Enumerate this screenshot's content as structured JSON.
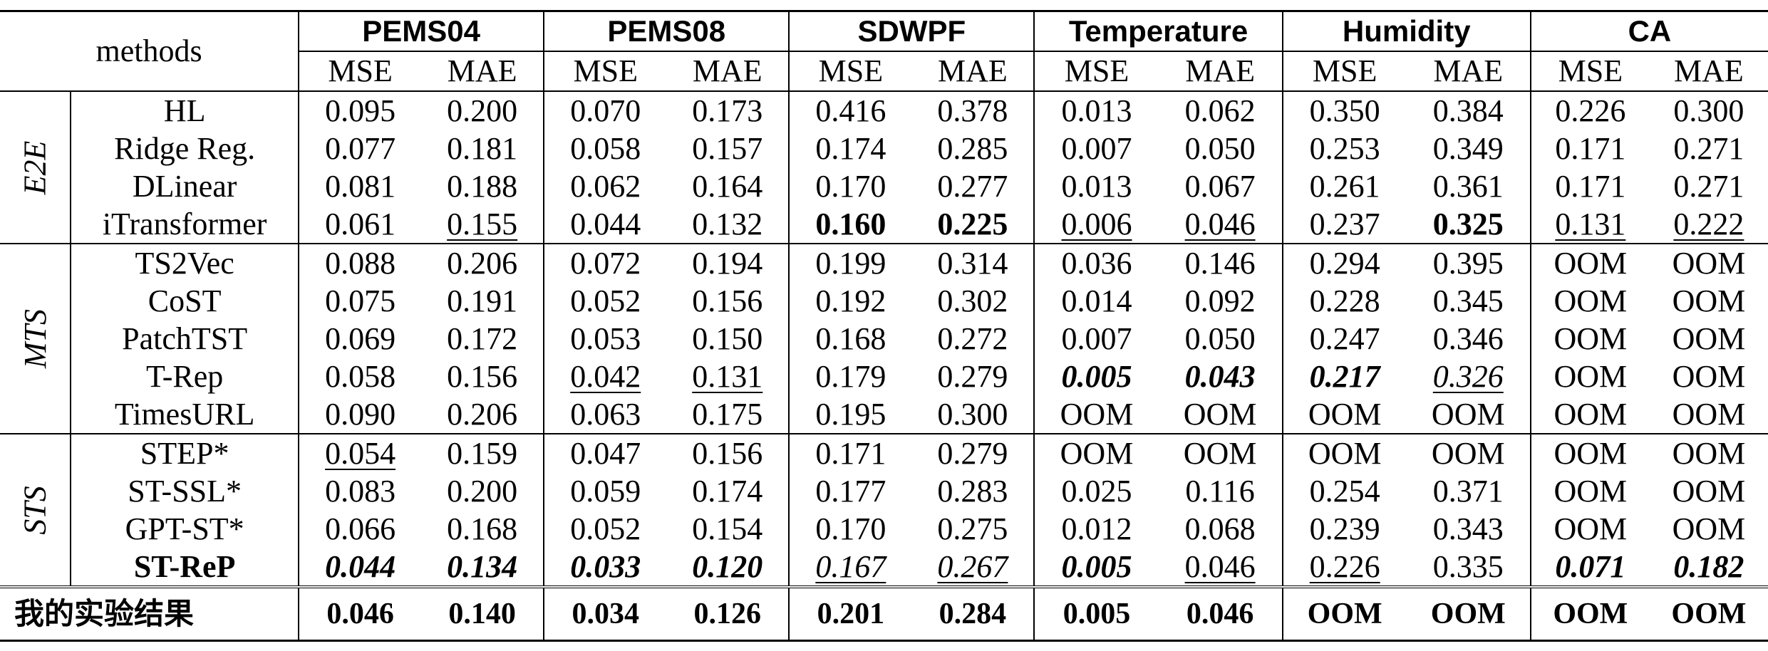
{
  "header": {
    "methods_label": "methods",
    "datasets": [
      "PEMS04",
      "PEMS08",
      "SDWPF",
      "Temperature",
      "Humidity",
      "CA"
    ],
    "metrics": [
      "MSE",
      "MAE"
    ]
  },
  "groups": [
    {
      "label": "E2E",
      "rows": [
        {
          "method": "HL",
          "values": [
            {
              "t": "0.095",
              "s": ""
            },
            {
              "t": "0.200",
              "s": ""
            },
            {
              "t": "0.070",
              "s": ""
            },
            {
              "t": "0.173",
              "s": ""
            },
            {
              "t": "0.416",
              "s": ""
            },
            {
              "t": "0.378",
              "s": ""
            },
            {
              "t": "0.013",
              "s": ""
            },
            {
              "t": "0.062",
              "s": ""
            },
            {
              "t": "0.350",
              "s": ""
            },
            {
              "t": "0.384",
              "s": ""
            },
            {
              "t": "0.226",
              "s": ""
            },
            {
              "t": "0.300",
              "s": ""
            }
          ]
        },
        {
          "method": "Ridge Reg.",
          "values": [
            {
              "t": "0.077",
              "s": ""
            },
            {
              "t": "0.181",
              "s": ""
            },
            {
              "t": "0.058",
              "s": ""
            },
            {
              "t": "0.157",
              "s": ""
            },
            {
              "t": "0.174",
              "s": ""
            },
            {
              "t": "0.285",
              "s": ""
            },
            {
              "t": "0.007",
              "s": ""
            },
            {
              "t": "0.050",
              "s": ""
            },
            {
              "t": "0.253",
              "s": ""
            },
            {
              "t": "0.349",
              "s": ""
            },
            {
              "t": "0.171",
              "s": ""
            },
            {
              "t": "0.271",
              "s": ""
            }
          ]
        },
        {
          "method": "DLinear",
          "values": [
            {
              "t": "0.081",
              "s": ""
            },
            {
              "t": "0.188",
              "s": ""
            },
            {
              "t": "0.062",
              "s": ""
            },
            {
              "t": "0.164",
              "s": ""
            },
            {
              "t": "0.170",
              "s": ""
            },
            {
              "t": "0.277",
              "s": ""
            },
            {
              "t": "0.013",
              "s": ""
            },
            {
              "t": "0.067",
              "s": ""
            },
            {
              "t": "0.261",
              "s": ""
            },
            {
              "t": "0.361",
              "s": ""
            },
            {
              "t": "0.171",
              "s": ""
            },
            {
              "t": "0.271",
              "s": ""
            }
          ]
        },
        {
          "method": "iTransformer",
          "values": [
            {
              "t": "0.061",
              "s": ""
            },
            {
              "t": "0.155",
              "s": "u"
            },
            {
              "t": "0.044",
              "s": ""
            },
            {
              "t": "0.132",
              "s": ""
            },
            {
              "t": "0.160",
              "s": "b"
            },
            {
              "t": "0.225",
              "s": "b"
            },
            {
              "t": "0.006",
              "s": "u"
            },
            {
              "t": "0.046",
              "s": "u"
            },
            {
              "t": "0.237",
              "s": ""
            },
            {
              "t": "0.325",
              "s": "b"
            },
            {
              "t": "0.131",
              "s": "u"
            },
            {
              "t": "0.222",
              "s": "u"
            }
          ]
        }
      ]
    },
    {
      "label": "MTS",
      "rows": [
        {
          "method": "TS2Vec",
          "values": [
            {
              "t": "0.088",
              "s": ""
            },
            {
              "t": "0.206",
              "s": ""
            },
            {
              "t": "0.072",
              "s": ""
            },
            {
              "t": "0.194",
              "s": ""
            },
            {
              "t": "0.199",
              "s": ""
            },
            {
              "t": "0.314",
              "s": ""
            },
            {
              "t": "0.036",
              "s": ""
            },
            {
              "t": "0.146",
              "s": ""
            },
            {
              "t": "0.294",
              "s": ""
            },
            {
              "t": "0.395",
              "s": ""
            },
            {
              "t": "OOM",
              "s": ""
            },
            {
              "t": "OOM",
              "s": ""
            }
          ]
        },
        {
          "method": "CoST",
          "values": [
            {
              "t": "0.075",
              "s": ""
            },
            {
              "t": "0.191",
              "s": ""
            },
            {
              "t": "0.052",
              "s": ""
            },
            {
              "t": "0.156",
              "s": ""
            },
            {
              "t": "0.192",
              "s": ""
            },
            {
              "t": "0.302",
              "s": ""
            },
            {
              "t": "0.014",
              "s": ""
            },
            {
              "t": "0.092",
              "s": ""
            },
            {
              "t": "0.228",
              "s": ""
            },
            {
              "t": "0.345",
              "s": ""
            },
            {
              "t": "OOM",
              "s": ""
            },
            {
              "t": "OOM",
              "s": ""
            }
          ]
        },
        {
          "method": "PatchTST",
          "values": [
            {
              "t": "0.069",
              "s": ""
            },
            {
              "t": "0.172",
              "s": ""
            },
            {
              "t": "0.053",
              "s": ""
            },
            {
              "t": "0.150",
              "s": ""
            },
            {
              "t": "0.168",
              "s": ""
            },
            {
              "t": "0.272",
              "s": ""
            },
            {
              "t": "0.007",
              "s": ""
            },
            {
              "t": "0.050",
              "s": ""
            },
            {
              "t": "0.247",
              "s": ""
            },
            {
              "t": "0.346",
              "s": ""
            },
            {
              "t": "OOM",
              "s": ""
            },
            {
              "t": "OOM",
              "s": ""
            }
          ]
        },
        {
          "method": "T-Rep",
          "values": [
            {
              "t": "0.058",
              "s": ""
            },
            {
              "t": "0.156",
              "s": ""
            },
            {
              "t": "0.042",
              "s": "u"
            },
            {
              "t": "0.131",
              "s": "u"
            },
            {
              "t": "0.179",
              "s": ""
            },
            {
              "t": "0.279",
              "s": ""
            },
            {
              "t": "0.005",
              "s": "bi"
            },
            {
              "t": "0.043",
              "s": "bi"
            },
            {
              "t": "0.217",
              "s": "bi"
            },
            {
              "t": "0.326",
              "s": "iu"
            },
            {
              "t": "OOM",
              "s": ""
            },
            {
              "t": "OOM",
              "s": ""
            }
          ]
        },
        {
          "method": "TimesURL",
          "values": [
            {
              "t": "0.090",
              "s": ""
            },
            {
              "t": "0.206",
              "s": ""
            },
            {
              "t": "0.063",
              "s": ""
            },
            {
              "t": "0.175",
              "s": ""
            },
            {
              "t": "0.195",
              "s": ""
            },
            {
              "t": "0.300",
              "s": ""
            },
            {
              "t": "OOM",
              "s": ""
            },
            {
              "t": "OOM",
              "s": ""
            },
            {
              "t": "OOM",
              "s": ""
            },
            {
              "t": "OOM",
              "s": ""
            },
            {
              "t": "OOM",
              "s": ""
            },
            {
              "t": "OOM",
              "s": ""
            }
          ]
        }
      ]
    },
    {
      "label": "STS",
      "rows": [
        {
          "method": "STEP*",
          "values": [
            {
              "t": "0.054",
              "s": "u"
            },
            {
              "t": "0.159",
              "s": ""
            },
            {
              "t": "0.047",
              "s": ""
            },
            {
              "t": "0.156",
              "s": ""
            },
            {
              "t": "0.171",
              "s": ""
            },
            {
              "t": "0.279",
              "s": ""
            },
            {
              "t": "OOM",
              "s": ""
            },
            {
              "t": "OOM",
              "s": ""
            },
            {
              "t": "OOM",
              "s": ""
            },
            {
              "t": "OOM",
              "s": ""
            },
            {
              "t": "OOM",
              "s": ""
            },
            {
              "t": "OOM",
              "s": ""
            }
          ]
        },
        {
          "method": "ST-SSL*",
          "values": [
            {
              "t": "0.083",
              "s": ""
            },
            {
              "t": "0.200",
              "s": ""
            },
            {
              "t": "0.059",
              "s": ""
            },
            {
              "t": "0.174",
              "s": ""
            },
            {
              "t": "0.177",
              "s": ""
            },
            {
              "t": "0.283",
              "s": ""
            },
            {
              "t": "0.025",
              "s": ""
            },
            {
              "t": "0.116",
              "s": ""
            },
            {
              "t": "0.254",
              "s": ""
            },
            {
              "t": "0.371",
              "s": ""
            },
            {
              "t": "OOM",
              "s": ""
            },
            {
              "t": "OOM",
              "s": ""
            }
          ]
        },
        {
          "method": "GPT-ST*",
          "values": [
            {
              "t": "0.066",
              "s": ""
            },
            {
              "t": "0.168",
              "s": ""
            },
            {
              "t": "0.052",
              "s": ""
            },
            {
              "t": "0.154",
              "s": ""
            },
            {
              "t": "0.170",
              "s": ""
            },
            {
              "t": "0.275",
              "s": ""
            },
            {
              "t": "0.012",
              "s": ""
            },
            {
              "t": "0.068",
              "s": ""
            },
            {
              "t": "0.239",
              "s": ""
            },
            {
              "t": "0.343",
              "s": ""
            },
            {
              "t": "OOM",
              "s": ""
            },
            {
              "t": "OOM",
              "s": ""
            }
          ]
        },
        {
          "method": "ST-ReP",
          "method_bold": true,
          "values": [
            {
              "t": "0.044",
              "s": "bi"
            },
            {
              "t": "0.134",
              "s": "bi"
            },
            {
              "t": "0.033",
              "s": "bi"
            },
            {
              "t": "0.120",
              "s": "bi"
            },
            {
              "t": "0.167",
              "s": "iu"
            },
            {
              "t": "0.267",
              "s": "iu"
            },
            {
              "t": "0.005",
              "s": "bi"
            },
            {
              "t": "0.046",
              "s": "u"
            },
            {
              "t": "0.226",
              "s": "u"
            },
            {
              "t": "0.335",
              "s": ""
            },
            {
              "t": "0.071",
              "s": "bi"
            },
            {
              "t": "0.182",
              "s": "bi"
            }
          ]
        }
      ]
    }
  ],
  "my_results": {
    "label": "我的实验结果",
    "values": [
      "0.046",
      "0.140",
      "0.034",
      "0.126",
      "0.201",
      "0.284",
      "0.005",
      "0.046",
      "OOM",
      "OOM",
      "OOM",
      "OOM"
    ]
  }
}
